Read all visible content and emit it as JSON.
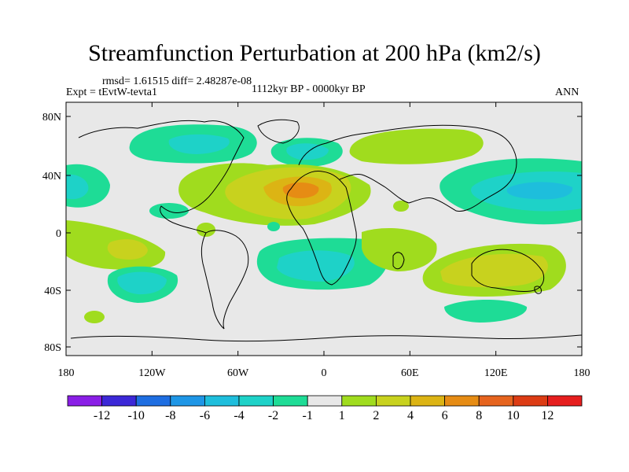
{
  "title": "Streamfunction Perturbation at 200 hPa (km2/s)",
  "stats": "rmsd= 1.61515  diff= 2.48287e-08",
  "experiment": "Expt = tEvtW-tevta1",
  "period": "1112kyr BP - 0000kyr BP",
  "season": "ANN",
  "y_ticks": [
    "80N",
    "40N",
    "0",
    "40S",
    "80S"
  ],
  "x_ticks": [
    "180",
    "120W",
    "60W",
    "0",
    "60E",
    "120E",
    "180"
  ],
  "colorbar": {
    "labels": [
      "-12",
      "-10",
      "-8",
      "-6",
      "-4",
      "-2",
      "-1",
      "1",
      "2",
      "4",
      "6",
      "8",
      "10",
      "12"
    ],
    "colors": [
      "#8a1ee6",
      "#3c28d7",
      "#1e6ee1",
      "#1e96e6",
      "#1ebedc",
      "#1ed2c8",
      "#1edc96",
      "#e8e8e8",
      "#a0dc1e",
      "#c8d21e",
      "#dcb414",
      "#e68c14",
      "#e6641e",
      "#dc3c14",
      "#e61e1e"
    ]
  }
}
